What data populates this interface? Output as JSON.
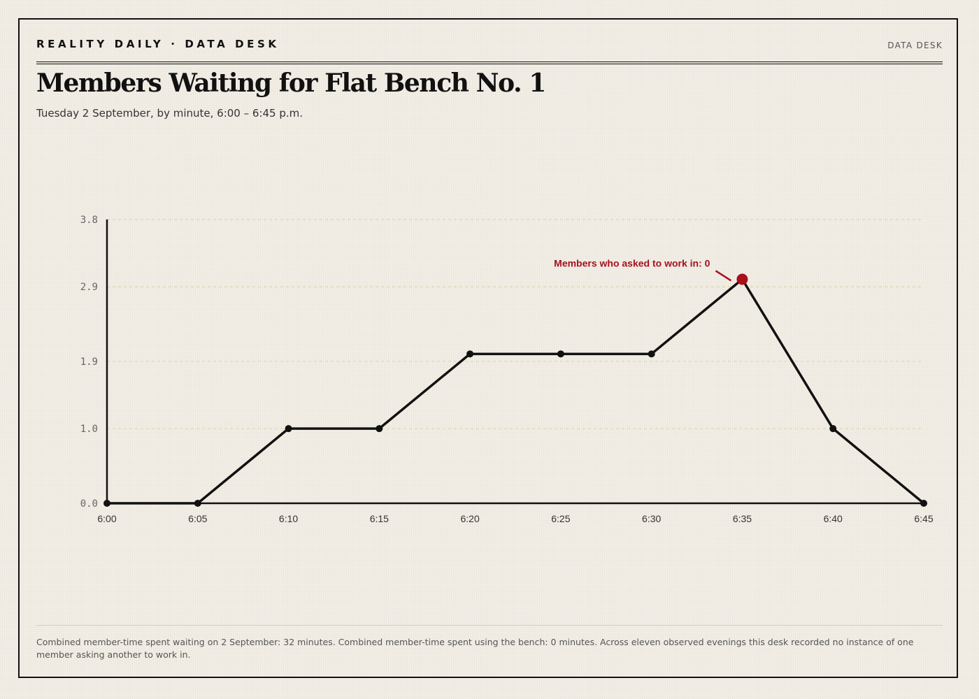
{
  "masthead": {
    "left": "REALITY DAILY · DATA DESK",
    "right": "DATA DESK"
  },
  "header": {
    "title": "Members Waiting for Flat Bench No. 1",
    "subtitle": "Tuesday 2 September, by minute, 6:00 – 6:45 p.m."
  },
  "chart_data": {
    "type": "line",
    "title": "Members Waiting for Flat Bench No. 1",
    "subtitle": "Tuesday 2 September, by minute, 6:00 – 6:45 p.m.",
    "xlabel": "",
    "ylabel": "",
    "x": [
      "6:00",
      "6:05",
      "6:10",
      "6:15",
      "6:20",
      "6:25",
      "6:30",
      "6:35",
      "6:40",
      "6:45"
    ],
    "values": [
      0,
      0,
      1,
      1,
      2,
      2,
      2,
      3,
      1,
      0
    ],
    "yticks": [
      "0.0",
      "1.0",
      "1.9",
      "2.9",
      "3.8"
    ],
    "ylim": [
      0,
      3.8
    ],
    "grid": true,
    "highlight": {
      "index": 7,
      "color": "#a8101e"
    },
    "annotation": {
      "text": "Members who asked to work in: 0",
      "index": 7
    }
  },
  "colors": {
    "line": "#111111",
    "accent": "#a8101e",
    "grid": "#d6d3a8",
    "background": "#f3efe6"
  },
  "footnote": "Combined member-time spent waiting on 2 September: 32 minutes. Combined member-time spent using the bench: 0 minutes. Across eleven observed evenings this desk recorded no instance of one member asking another to work in."
}
